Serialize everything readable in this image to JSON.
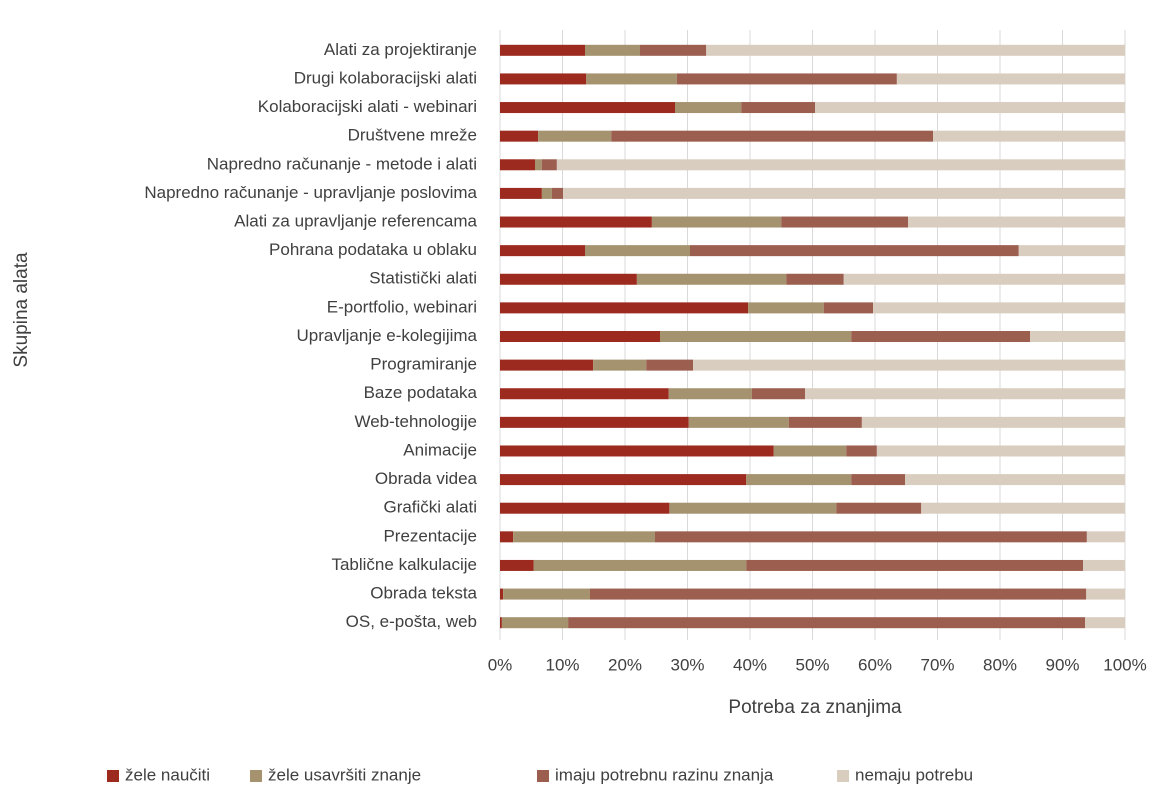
{
  "chart_data": {
    "type": "stacked_barh",
    "xlabel": "Potreba za znanjima",
    "ylabel": "Skupina alata",
    "categories": [
      "Alati za projektiranje",
      "Drugi kolaboracijski alati",
      "Kolaboracijski alati - webinari",
      "Društvene mreže",
      "Napredno računanje - metode i alati",
      "Napredno računanje - upravljanje poslovima",
      "Alati za upravljanje referencama",
      "Pohrana podataka u oblaku",
      "Statistički alati",
      "E-portfolio, webinari",
      "Upravljanje e-kolegijima",
      "Programiranje",
      "Baze podataka",
      "Web-tehnologije",
      "Animacije",
      "Obrada videa",
      "Grafički alati",
      "Prezentacije",
      "Tablične kalkulacije",
      "Obrada teksta",
      "OS, e-pošta, web"
    ],
    "series": [
      {
        "name": "žele naučiti",
        "color": "#9c2a1f",
        "values": [
          13.6,
          13.8,
          28,
          6.1,
          5.6,
          6.7,
          24.3,
          13.6,
          21.9,
          39.7,
          25.6,
          14.9,
          27,
          30.2,
          43.8,
          39.4,
          27.1,
          2.1,
          5.4,
          0.5,
          0.3
        ]
      },
      {
        "name": "žele usavršiti znanje",
        "color": "#a5926e",
        "values": [
          8.8,
          14.5,
          10.6,
          11.7,
          1.1,
          1.6,
          20.7,
          16.8,
          23.9,
          12.1,
          30.6,
          8.5,
          13.3,
          16,
          11.6,
          16.8,
          26.7,
          22.7,
          34,
          13.9,
          10.6
        ]
      },
      {
        "name": "imaju potrebnu razinu znanja",
        "color": "#9b5e4f",
        "values": [
          10.6,
          35.2,
          11.8,
          51.5,
          2.4,
          1.8,
          20.3,
          52.6,
          9.2,
          7.9,
          28.6,
          7.5,
          8.5,
          11.7,
          4.9,
          8.6,
          13.6,
          69.1,
          53.9,
          79.4,
          82.7
        ]
      },
      {
        "name": "nemaju potrebu",
        "color": "#d9cdbf",
        "values": [
          67,
          36.5,
          49.6,
          30.7,
          90.9,
          89.9,
          34.7,
          17,
          45,
          40.3,
          15.2,
          69.1,
          51.2,
          42.1,
          39.7,
          35.2,
          32.6,
          6.1,
          6.7,
          6.2,
          6.4
        ]
      }
    ],
    "xlim": [
      0,
      100
    ],
    "xticks": [
      {
        "value": 0,
        "label": "0%"
      },
      {
        "value": 10,
        "label": "10%"
      },
      {
        "value": 20,
        "label": "20%"
      },
      {
        "value": 30,
        "label": "30%"
      },
      {
        "value": 40,
        "label": "40%"
      },
      {
        "value": 50,
        "label": "50%"
      },
      {
        "value": 60,
        "label": "60%"
      },
      {
        "value": 70,
        "label": "70%"
      },
      {
        "value": 80,
        "label": "80%"
      },
      {
        "value": 90,
        "label": "90%"
      },
      {
        "value": 100,
        "label": "100%"
      }
    ],
    "grid": true,
    "legend": "bottom"
  }
}
